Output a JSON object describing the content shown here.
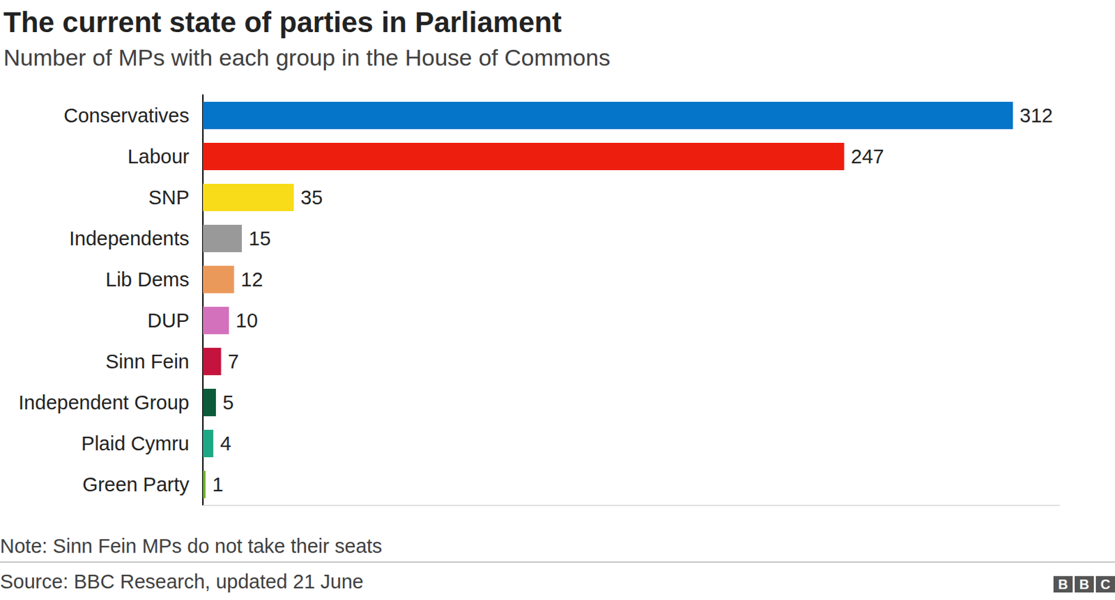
{
  "chart_data": {
    "type": "bar",
    "orientation": "horizontal",
    "title": "The current state of parties in Parliament",
    "subtitle": "Number of MPs with each group in the House of Commons",
    "categories": [
      "Conservatives",
      "Labour",
      "SNP",
      "Independents",
      "Lib Dems",
      "DUP",
      "Sinn Fein",
      "Independent Group",
      "Plaid Cymru",
      "Green Party"
    ],
    "values": [
      312,
      247,
      35,
      15,
      12,
      10,
      7,
      5,
      4,
      1
    ],
    "colors": [
      "#0575c9",
      "#ed1e0e",
      "#f8dc19",
      "#999999",
      "#eb995b",
      "#d471bd",
      "#c4133d",
      "#0b5a3a",
      "#1ea885",
      "#6ab023"
    ],
    "xlim": [
      0,
      330
    ],
    "xticks": [],
    "grid": false,
    "data_labels": true,
    "tick_labels": "y",
    "note": "Note: Sinn Fein MPs do not take their seats",
    "source": "Source: BBC Research, updated 21 June",
    "credit": "BBC"
  }
}
